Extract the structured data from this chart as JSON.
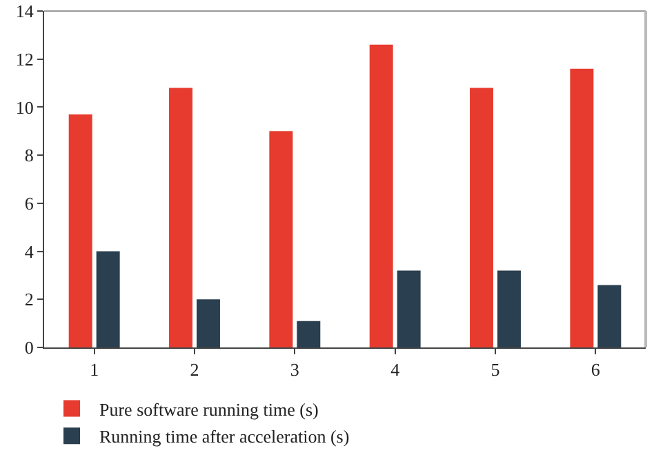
{
  "chart_data": {
    "type": "bar",
    "categories": [
      "1",
      "2",
      "3",
      "4",
      "5",
      "6"
    ],
    "series": [
      {
        "name": "Pure software running time (s)",
        "color": "#e63b2e",
        "values": [
          9.7,
          10.8,
          9.0,
          12.6,
          10.8,
          11.6
        ]
      },
      {
        "name": "Running time after acceleration (s)",
        "color": "#2a3f4f",
        "values": [
          4.0,
          2.0,
          1.1,
          3.2,
          3.2,
          2.6
        ]
      }
    ],
    "ylim": [
      0,
      14
    ],
    "yticks": [
      0,
      2,
      4,
      6,
      8,
      10,
      12,
      14
    ],
    "grid": false,
    "legend": "bottom left"
  }
}
